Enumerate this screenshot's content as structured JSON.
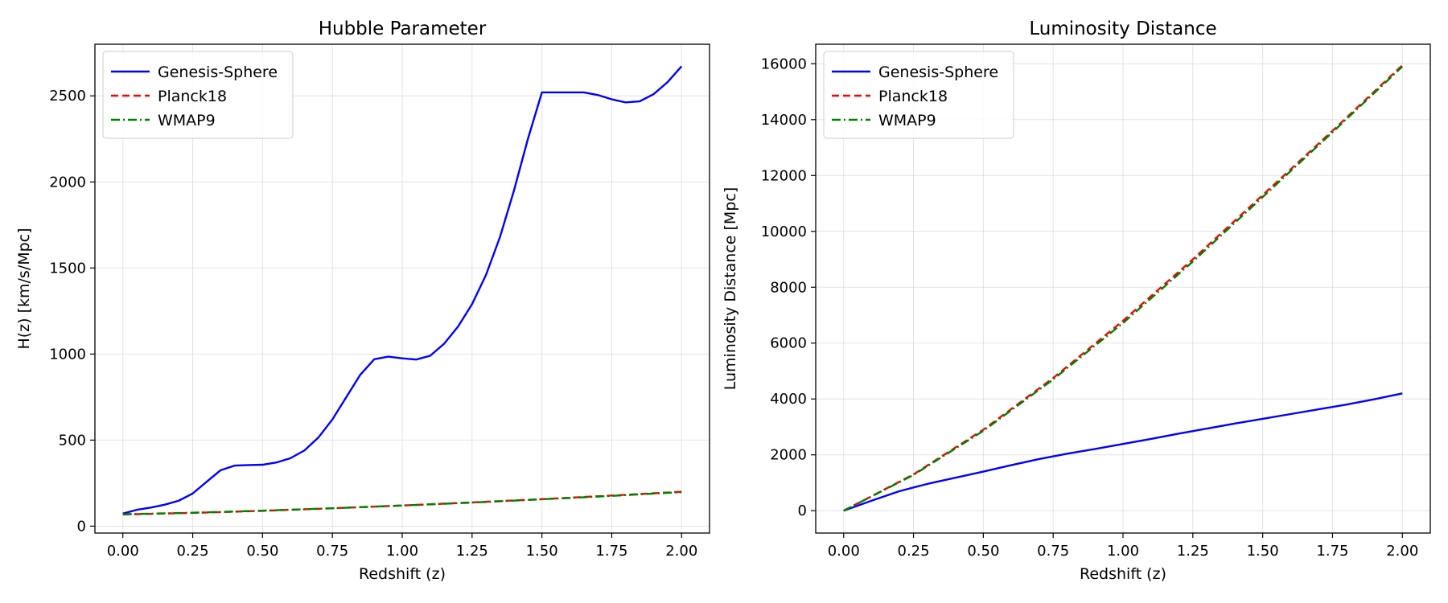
{
  "chart_data": [
    {
      "type": "line",
      "title": "Hubble Parameter",
      "xlabel": "Redshift (z)",
      "ylabel": "H(z) [km/s/Mpc]",
      "xlim": [
        -0.1,
        2.1
      ],
      "ylim": [
        -40,
        2800
      ],
      "xticks": [
        0.0,
        0.25,
        0.5,
        0.75,
        1.0,
        1.25,
        1.5,
        1.75,
        2.0
      ],
      "xtick_labels": [
        "0.00",
        "0.25",
        "0.50",
        "0.75",
        "1.00",
        "1.25",
        "1.50",
        "1.75",
        "2.00"
      ],
      "yticks": [
        0,
        500,
        1000,
        1500,
        2000,
        2500
      ],
      "ytick_labels": [
        "0",
        "500",
        "1000",
        "1500",
        "2000",
        "2500"
      ],
      "grid": true,
      "legend_position": "top-left",
      "series": [
        {
          "name": "Genesis-Sphere",
          "color": "#0000ff",
          "style": "solid",
          "x": [
            0.0,
            0.05,
            0.1,
            0.15,
            0.2,
            0.25,
            0.3,
            0.35,
            0.4,
            0.45,
            0.5,
            0.55,
            0.6,
            0.65,
            0.7,
            0.75,
            0.8,
            0.85,
            0.9,
            0.95,
            1.0,
            1.05,
            1.1,
            1.15,
            1.2,
            1.25,
            1.3,
            1.35,
            1.4,
            1.45,
            1.5,
            1.55,
            1.6,
            1.65,
            1.7,
            1.75,
            1.8,
            1.85,
            1.9,
            1.95,
            2.0
          ],
          "y": [
            73,
            95,
            108,
            125,
            148,
            190,
            258,
            325,
            352,
            355,
            357,
            370,
            395,
            440,
            515,
            620,
            750,
            880,
            970,
            985,
            975,
            968,
            990,
            1060,
            1160,
            1290,
            1460,
            1680,
            1950,
            2250,
            2520,
            2520,
            2520,
            2520,
            2505,
            2480,
            2462,
            2468,
            2510,
            2580,
            2672
          ]
        },
        {
          "name": "Planck18",
          "color": "#ff0000",
          "style": "dashed",
          "x": [
            0.0,
            0.25,
            0.5,
            0.75,
            1.0,
            1.25,
            1.5,
            1.75,
            2.0
          ],
          "y": [
            67.7,
            77,
            89,
            104,
            120,
            138,
            157,
            178,
            200
          ]
        },
        {
          "name": "WMAP9",
          "color": "#008000",
          "style": "dashdot",
          "x": [
            0.0,
            0.25,
            0.5,
            0.75,
            1.0,
            1.25,
            1.5,
            1.75,
            2.0
          ],
          "y": [
            69.3,
            78,
            90,
            104,
            120,
            137,
            156,
            176,
            198
          ]
        }
      ]
    },
    {
      "type": "line",
      "title": "Luminosity Distance",
      "xlabel": "Redshift (z)",
      "ylabel": "Luminosity Distance [Mpc]",
      "xlim": [
        -0.1,
        2.1
      ],
      "ylim": [
        -800,
        16700
      ],
      "xticks": [
        0.0,
        0.25,
        0.5,
        0.75,
        1.0,
        1.25,
        1.5,
        1.75,
        2.0
      ],
      "xtick_labels": [
        "0.00",
        "0.25",
        "0.50",
        "0.75",
        "1.00",
        "1.25",
        "1.50",
        "1.75",
        "2.00"
      ],
      "yticks": [
        0,
        2000,
        4000,
        6000,
        8000,
        10000,
        12000,
        14000,
        16000
      ],
      "ytick_labels": [
        "0",
        "2000",
        "4000",
        "6000",
        "8000",
        "10000",
        "12000",
        "14000",
        "16000"
      ],
      "grid": true,
      "legend_position": "top-left",
      "series": [
        {
          "name": "Genesis-Sphere",
          "color": "#0000ff",
          "style": "solid",
          "x": [
            0.0,
            0.1,
            0.2,
            0.3,
            0.4,
            0.5,
            0.6,
            0.7,
            0.8,
            0.9,
            1.0,
            1.1,
            1.2,
            1.3,
            1.4,
            1.5,
            1.6,
            1.7,
            1.8,
            1.9,
            2.0
          ],
          "y": [
            0,
            360,
            700,
            960,
            1180,
            1400,
            1630,
            1850,
            2040,
            2210,
            2390,
            2570,
            2760,
            2940,
            3120,
            3290,
            3460,
            3630,
            3800,
            3990,
            4200
          ]
        },
        {
          "name": "Planck18",
          "color": "#ff0000",
          "style": "dashed",
          "x": [
            0.0,
            0.25,
            0.5,
            0.75,
            1.0,
            1.25,
            1.5,
            1.75,
            2.0
          ],
          "y": [
            0,
            1300,
            2900,
            4750,
            6800,
            9000,
            11300,
            13600,
            15950
          ]
        },
        {
          "name": "WMAP9",
          "color": "#008000",
          "style": "dashdot",
          "x": [
            0.0,
            0.25,
            0.5,
            0.75,
            1.0,
            1.25,
            1.5,
            1.75,
            2.0
          ],
          "y": [
            0,
            1280,
            2860,
            4700,
            6720,
            8920,
            11230,
            13550,
            15900
          ]
        }
      ]
    }
  ]
}
